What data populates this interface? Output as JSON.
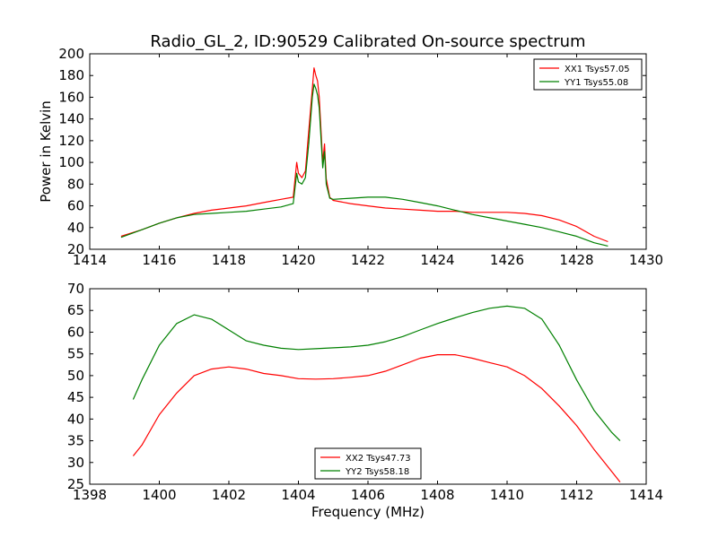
{
  "chart_data": [
    {
      "type": "line",
      "title": "Radio_GL_2, ID:90529 Calibrated On-source spectrum",
      "xlabel": "",
      "ylabel": "Power in Kelvin",
      "xlim": [
        1414,
        1430
      ],
      "ylim": [
        20,
        200
      ],
      "xticks": [
        "1414",
        "1416",
        "1418",
        "1420",
        "1422",
        "1424",
        "1426",
        "1428",
        "1430"
      ],
      "yticks": [
        "20",
        "40",
        "60",
        "80",
        "100",
        "120",
        "140",
        "160",
        "180",
        "200"
      ],
      "grid": false,
      "legend_position": "top-right",
      "series": [
        {
          "name": "XX1 Tsys57.05",
          "color": "#ff0000",
          "x": [
            1414.9,
            1415.5,
            1416.0,
            1416.5,
            1417.0,
            1417.5,
            1418.0,
            1418.5,
            1419.0,
            1419.5,
            1419.85,
            1419.95,
            1420.0,
            1420.1,
            1420.2,
            1420.3,
            1420.4,
            1420.45,
            1420.5,
            1420.55,
            1420.6,
            1420.7,
            1420.75,
            1420.8,
            1420.9,
            1421.0,
            1421.5,
            1422.0,
            1422.5,
            1423.0,
            1423.5,
            1424.0,
            1424.5,
            1425.0,
            1425.5,
            1426.0,
            1426.5,
            1427.0,
            1427.5,
            1428.0,
            1428.5,
            1428.9
          ],
          "values": [
            32,
            38,
            44,
            49,
            53,
            56,
            58,
            60,
            63,
            66,
            68,
            100,
            90,
            86,
            92,
            130,
            168,
            187,
            180,
            175,
            160,
            100,
            117,
            85,
            68,
            65,
            62,
            60,
            58,
            57,
            56,
            55,
            55,
            54,
            54,
            54,
            53,
            51,
            47,
            41,
            32,
            27
          ]
        },
        {
          "name": "YY1 Tsys55.08",
          "color": "#008000",
          "x": [
            1414.9,
            1415.5,
            1416.0,
            1416.5,
            1417.0,
            1417.5,
            1418.0,
            1418.5,
            1419.0,
            1419.5,
            1419.85,
            1419.95,
            1420.0,
            1420.1,
            1420.2,
            1420.3,
            1420.4,
            1420.45,
            1420.5,
            1420.55,
            1420.6,
            1420.7,
            1420.75,
            1420.8,
            1420.9,
            1421.0,
            1421.5,
            1422.0,
            1422.5,
            1423.0,
            1423.5,
            1424.0,
            1424.5,
            1425.0,
            1425.5,
            1426.0,
            1426.5,
            1427.0,
            1427.5,
            1428.0,
            1428.5,
            1428.9
          ],
          "values": [
            31,
            38,
            44,
            49,
            52,
            53,
            54,
            55,
            57,
            59,
            62,
            90,
            82,
            80,
            86,
            118,
            160,
            172,
            168,
            162,
            150,
            95,
            110,
            80,
            67,
            66,
            67,
            68,
            68,
            66,
            63,
            60,
            56,
            52,
            49,
            46,
            43,
            40,
            36,
            32,
            26,
            23
          ]
        }
      ]
    },
    {
      "type": "line",
      "title": "",
      "xlabel": "Frequency (MHz)",
      "ylabel": "",
      "xlim": [
        1398,
        1414
      ],
      "ylim": [
        25,
        70
      ],
      "xticks": [
        "1398",
        "1400",
        "1402",
        "1404",
        "1406",
        "1408",
        "1410",
        "1412",
        "1414"
      ],
      "yticks": [
        "25",
        "30",
        "35",
        "40",
        "45",
        "50",
        "55",
        "60",
        "65",
        "70"
      ],
      "grid": false,
      "legend_position": "bottom-center",
      "series": [
        {
          "name": "XX2 Tsys47.73",
          "color": "#ff0000",
          "x": [
            1399.25,
            1399.5,
            1400.0,
            1400.5,
            1401.0,
            1401.5,
            1402.0,
            1402.5,
            1403.0,
            1403.5,
            1404.0,
            1404.5,
            1405.0,
            1405.5,
            1406.0,
            1406.5,
            1407.0,
            1407.5,
            1408.0,
            1408.5,
            1409.0,
            1409.5,
            1410.0,
            1410.5,
            1411.0,
            1411.5,
            1412.0,
            1412.5,
            1413.0,
            1413.25
          ],
          "values": [
            31.5,
            34,
            41,
            46,
            50,
            51.5,
            52,
            51.5,
            50.5,
            50,
            49.3,
            49.2,
            49.3,
            49.6,
            50,
            51,
            52.5,
            54,
            54.8,
            54.8,
            54,
            53,
            52,
            50,
            47,
            43,
            38.5,
            33,
            28,
            25.5
          ]
        },
        {
          "name": "YY2 Tsys58.18",
          "color": "#008000",
          "x": [
            1399.25,
            1399.5,
            1400.0,
            1400.5,
            1401.0,
            1401.5,
            1402.0,
            1402.5,
            1403.0,
            1403.5,
            1404.0,
            1404.5,
            1405.0,
            1405.5,
            1406.0,
            1406.5,
            1407.0,
            1407.5,
            1408.0,
            1408.5,
            1409.0,
            1409.5,
            1410.0,
            1410.5,
            1411.0,
            1411.5,
            1412.0,
            1412.5,
            1413.0,
            1413.25
          ],
          "values": [
            44.5,
            49,
            57,
            62,
            64,
            63,
            60.5,
            58,
            57,
            56.3,
            56,
            56.2,
            56.4,
            56.6,
            57,
            57.8,
            59,
            60.5,
            62,
            63.3,
            64.5,
            65.5,
            66,
            65.5,
            63,
            57,
            49,
            42,
            37,
            35
          ]
        }
      ]
    }
  ]
}
